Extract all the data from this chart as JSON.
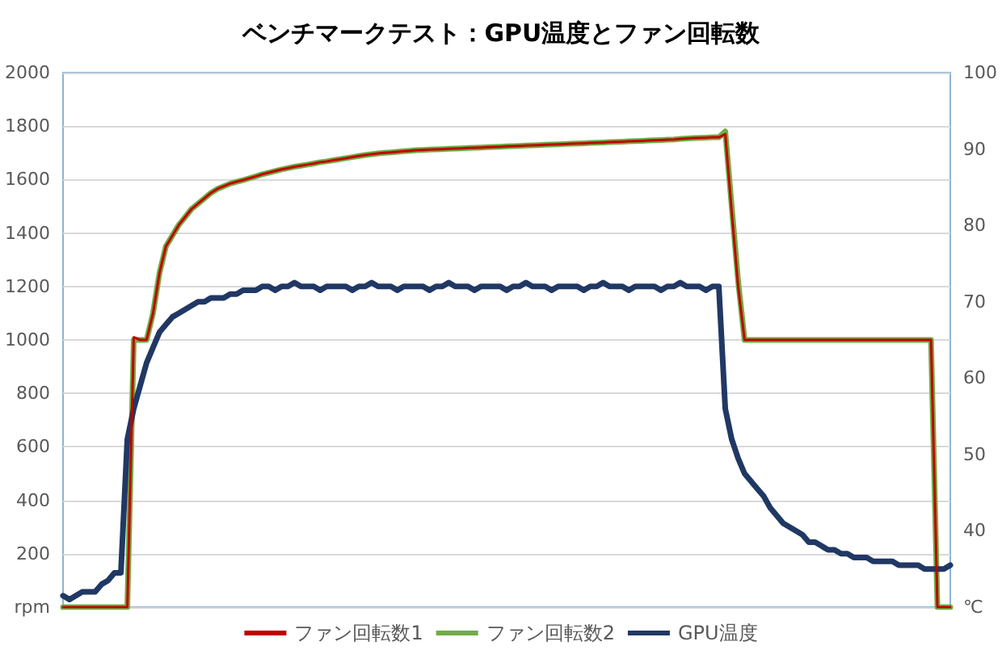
{
  "chart_data": {
    "type": "line",
    "title": "ベンチマークテスト：GPU温度とファン回転数",
    "categories": [
      null,
      null,
      null,
      null,
      null,
      null,
      null,
      null,
      null,
      null,
      null,
      null,
      null,
      null,
      null,
      null,
      null,
      null,
      null,
      null,
      null,
      null,
      null,
      null,
      null,
      null,
      null,
      null,
      null,
      null,
      null,
      null,
      null,
      null,
      null,
      null,
      null,
      null,
      null,
      null,
      null,
      null,
      null,
      null,
      null,
      null,
      null,
      null,
      null,
      null,
      null,
      null,
      null,
      null,
      null,
      null,
      null,
      null,
      null,
      null,
      null,
      null,
      null,
      null,
      null,
      null,
      null,
      null,
      null,
      null,
      null,
      null,
      null,
      null,
      null,
      null,
      null,
      null,
      null,
      null,
      null,
      null,
      null,
      null,
      null,
      null,
      null,
      null,
      null,
      null,
      null,
      null,
      null,
      null,
      null,
      null,
      null,
      null,
      null,
      null,
      null,
      null,
      null,
      null,
      null,
      null,
      null,
      null,
      null,
      null,
      null,
      null,
      null,
      null,
      null,
      null,
      null,
      null,
      null,
      null,
      null,
      null,
      null,
      null,
      null,
      null,
      null,
      null,
      null,
      null,
      null,
      null,
      null,
      null,
      null,
      null,
      null,
      null,
      null
    ],
    "series": [
      {
        "name": "ファン回転数1",
        "color": "#c00000",
        "values": [
          0,
          0,
          0,
          0,
          0,
          0,
          0,
          0,
          0,
          0,
          0,
          1010,
          1000,
          1000,
          1100,
          1250,
          1350,
          1390,
          1430,
          1460,
          1490,
          1510,
          1530,
          1550,
          1565,
          1575,
          1585,
          1592,
          1598,
          1605,
          1612,
          1620,
          1626,
          1632,
          1638,
          1643,
          1648,
          1652,
          1656,
          1660,
          1665,
          1668,
          1672,
          1676,
          1680,
          1684,
          1688,
          1692,
          1695,
          1698,
          1700,
          1702,
          1704,
          1706,
          1708,
          1710,
          1711,
          1712,
          1713,
          1714,
          1715,
          1716,
          1717,
          1718,
          1719,
          1720,
          1721,
          1722,
          1723,
          1724,
          1725,
          1726,
          1727,
          1728,
          1729,
          1730,
          1731,
          1732,
          1733,
          1734,
          1735,
          1736,
          1737,
          1738,
          1739,
          1740,
          1741,
          1742,
          1743,
          1744,
          1745,
          1746,
          1747,
          1748,
          1749,
          1750,
          1752,
          1754,
          1755,
          1756,
          1757,
          1758,
          1758,
          1770,
          1480,
          1200,
          1000,
          1000,
          1000,
          1000,
          1000,
          1000,
          1000,
          1000,
          1000,
          1000,
          1000,
          1000,
          1000,
          1000,
          1000,
          1000,
          1000,
          1000,
          1000,
          1000,
          1000,
          1000,
          1000,
          1000,
          1000,
          1000,
          1000,
          1000,
          1000,
          1000,
          0,
          0,
          0
        ]
      },
      {
        "name": "ファン回転数2",
        "color": "#70ad47",
        "values": [
          0,
          0,
          0,
          0,
          0,
          0,
          0,
          0,
          0,
          0,
          0,
          1000,
          1000,
          1000,
          1100,
          1250,
          1350,
          1390,
          1430,
          1460,
          1490,
          1510,
          1530,
          1550,
          1565,
          1575,
          1585,
          1592,
          1598,
          1605,
          1612,
          1620,
          1626,
          1632,
          1638,
          1643,
          1648,
          1652,
          1656,
          1660,
          1665,
          1668,
          1672,
          1676,
          1680,
          1684,
          1688,
          1692,
          1695,
          1698,
          1700,
          1702,
          1704,
          1706,
          1708,
          1710,
          1711,
          1712,
          1713,
          1714,
          1715,
          1716,
          1717,
          1718,
          1719,
          1720,
          1721,
          1722,
          1723,
          1724,
          1725,
          1726,
          1727,
          1728,
          1729,
          1730,
          1731,
          1732,
          1733,
          1734,
          1735,
          1736,
          1737,
          1738,
          1739,
          1740,
          1741,
          1742,
          1743,
          1744,
          1745,
          1746,
          1747,
          1748,
          1749,
          1750,
          1752,
          1754,
          1755,
          1756,
          1757,
          1758,
          1758,
          1780,
          1500,
          1220,
          1000,
          1000,
          1000,
          1000,
          1000,
          1000,
          1000,
          1000,
          1000,
          1000,
          1000,
          1000,
          1000,
          1000,
          1000,
          1000,
          1000,
          1000,
          1000,
          1000,
          1000,
          1000,
          1000,
          1000,
          1000,
          1000,
          1000,
          1000,
          1000,
          1000,
          0,
          0,
          0
        ]
      },
      {
        "name": "GPU温度",
        "color": "#203864",
        "axis": "y2",
        "values": [
          31.5,
          31,
          31.5,
          32,
          32,
          32,
          33,
          33.5,
          34.5,
          34.5,
          52,
          56,
          59,
          62,
          64,
          66,
          67,
          68,
          68.5,
          69,
          69.5,
          70,
          70,
          70.5,
          70.5,
          70.5,
          71,
          71,
          71.5,
          71.5,
          71.5,
          72,
          72,
          71.5,
          72,
          72,
          72.5,
          72,
          72,
          72,
          71.5,
          72,
          72,
          72,
          72,
          71.5,
          72,
          72,
          72.5,
          72,
          72,
          72,
          71.5,
          72,
          72,
          72,
          72,
          71.5,
          72,
          72,
          72.5,
          72,
          72,
          72,
          71.5,
          72,
          72,
          72,
          72,
          71.5,
          72,
          72,
          72.5,
          72,
          72,
          72,
          71.5,
          72,
          72,
          72,
          72,
          71.5,
          72,
          72,
          72.5,
          72,
          72,
          72,
          71.5,
          72,
          72,
          72,
          72,
          71.5,
          72,
          72,
          72.5,
          72,
          72,
          72,
          71.5,
          72,
          72,
          56,
          52,
          49.5,
          47.5,
          46.5,
          45.5,
          44.5,
          43,
          42,
          41,
          40.5,
          40,
          39.5,
          38.5,
          38.5,
          38,
          37.5,
          37.5,
          37,
          37,
          36.5,
          36.5,
          36.5,
          36,
          36,
          36,
          36,
          35.5,
          35.5,
          35.5,
          35.5,
          35,
          35,
          35,
          35,
          35.5
        ]
      }
    ],
    "ylim": [
      0,
      2000
    ],
    "yticks": [
      {
        "value": 0,
        "label": "rpm"
      },
      200,
      400,
      600,
      800,
      1000,
      1200,
      1400,
      1600,
      1800,
      2000
    ],
    "y2lim": [
      30,
      100
    ],
    "y2ticks": [
      {
        "value": 30,
        "label": "℃"
      },
      40,
      50,
      60,
      70,
      80,
      90,
      100
    ],
    "grid": "y",
    "legend": "bottom",
    "tick_labels": "y",
    "line_style": "solid"
  }
}
